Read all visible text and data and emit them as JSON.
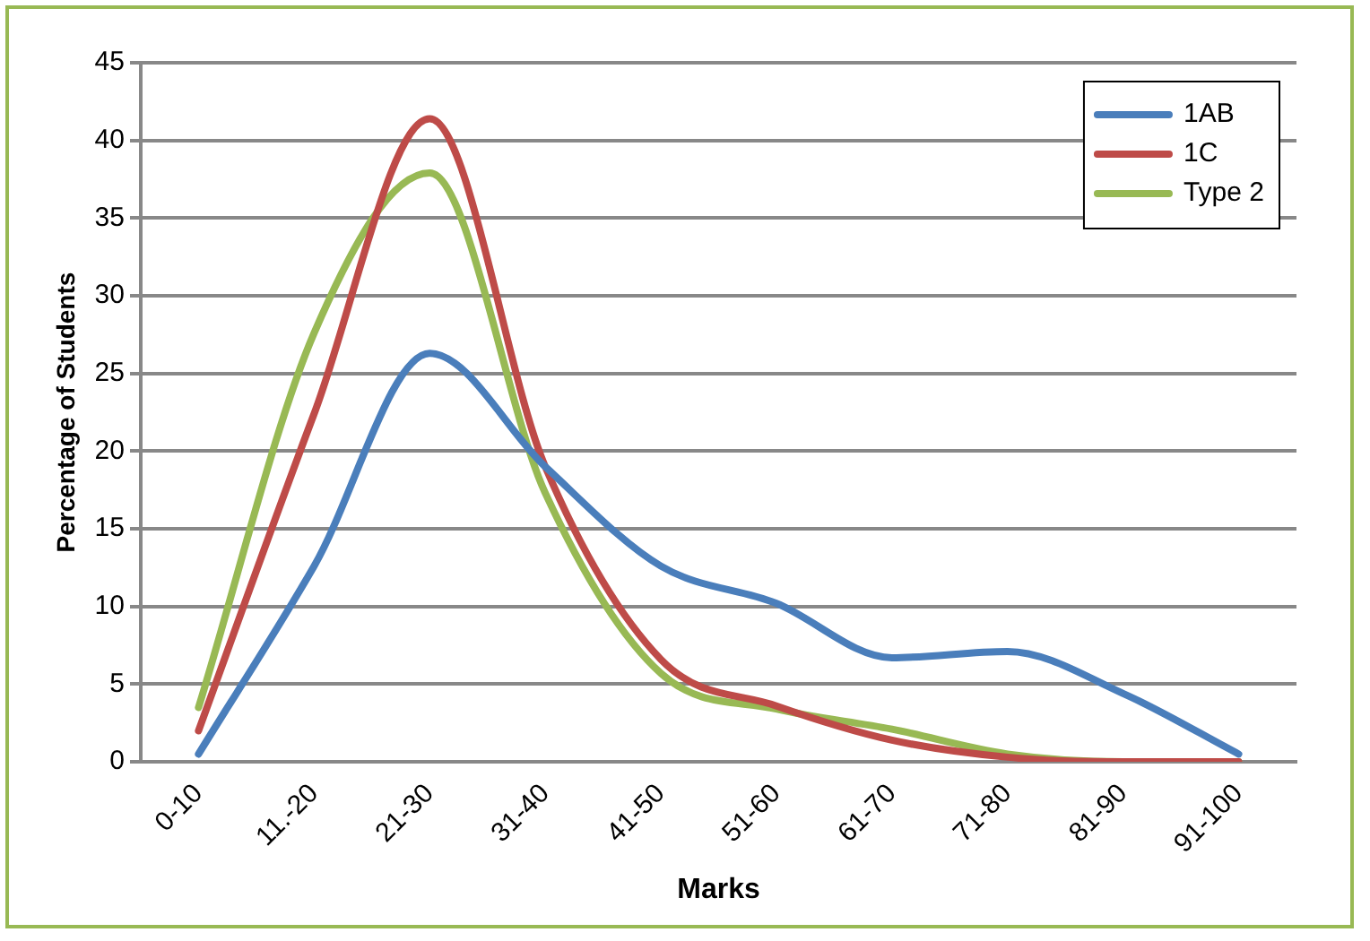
{
  "chart_data": {
    "type": "line",
    "xlabel": "Marks",
    "ylabel": "Percentage of Students",
    "categories": [
      "0-10",
      "11.-20",
      "21-30",
      "31-40",
      "41-50",
      "51-60",
      "61-70",
      "71-80",
      "81-90",
      "91-100"
    ],
    "series": [
      {
        "name": "1AB",
        "color": "#4a7ebb",
        "values": [
          0.5,
          12.6,
          26.3,
          19,
          12.6,
          10.2,
          6.7,
          7.1,
          4.4,
          0.5
        ]
      },
      {
        "name": "1C",
        "color": "#be4b48",
        "values": [
          2,
          22.4,
          41.4,
          19,
          6.6,
          3.6,
          1.4,
          0.3,
          0,
          0
        ]
      },
      {
        "name": "Type 2",
        "color": "#98b954",
        "values": [
          3.5,
          27.6,
          37.9,
          17.3,
          5.7,
          3.4,
          2.1,
          0.5,
          0,
          0
        ]
      }
    ],
    "ylim": [
      0,
      45
    ],
    "yticks": [
      0,
      5,
      10,
      15,
      20,
      25,
      30,
      35,
      40,
      45
    ],
    "grid": "y",
    "legend": "top right",
    "marker": "none",
    "line_style": "solid"
  }
}
